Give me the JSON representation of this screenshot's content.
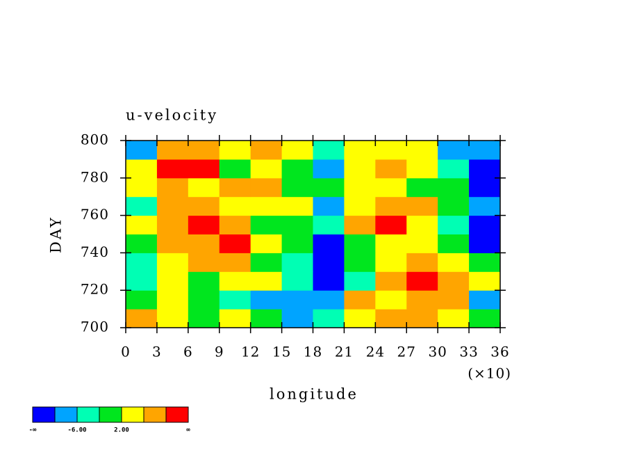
{
  "chart_data": {
    "type": "heatmap",
    "title": "u-velocity",
    "x_label": "longitude",
    "y_label": "DAY",
    "x_multiplier_label": "(×10)",
    "xlim": [
      0,
      36
    ],
    "xticks": [
      0,
      3,
      6,
      9,
      12,
      15,
      18,
      21,
      24,
      27,
      30,
      33,
      36
    ],
    "ylim": [
      700,
      800
    ],
    "yticks": [
      700,
      720,
      740,
      760,
      780,
      800
    ],
    "x": [
      1.5,
      4.5,
      7.5,
      10.5,
      13.5,
      16.5,
      19.5,
      22.5,
      25.5,
      28.5,
      31.5,
      34.5
    ],
    "y": [
      705,
      715,
      725,
      735,
      745,
      755,
      765,
      775,
      785,
      795
    ],
    "z": [
      [
        6,
        2,
        0,
        4,
        0,
        -8,
        -6,
        4,
        6,
        8,
        4,
        0
      ],
      [
        0,
        4,
        0,
        -3,
        -8,
        -10,
        -8,
        8,
        4,
        8,
        6,
        -8
      ],
      [
        -3,
        4,
        0,
        4,
        2,
        -4,
        -12,
        -6,
        6,
        12,
        8,
        2
      ],
      [
        -6,
        4,
        8,
        6,
        0,
        -6,
        -12,
        -2,
        4,
        6,
        4,
        0
      ],
      [
        0,
        6,
        8,
        12,
        4,
        0,
        -12,
        0,
        2,
        4,
        0,
        -12
      ],
      [
        4,
        6,
        10,
        8,
        0,
        -2,
        -6,
        8,
        12,
        4,
        -4,
        -12
      ],
      [
        -6,
        8,
        6,
        4,
        2,
        4,
        -10,
        2,
        6,
        8,
        0,
        -8
      ],
      [
        2,
        8,
        4,
        6,
        8,
        0,
        -2,
        4,
        2,
        0,
        -2,
        -12
      ],
      [
        4,
        10,
        12,
        0,
        4,
        0,
        -8,
        4,
        8,
        4,
        -4,
        -12
      ],
      [
        -8,
        6,
        8,
        4,
        8,
        4,
        -6,
        2,
        4,
        4,
        -10,
        -8
      ]
    ],
    "levels": [
      -10,
      -6,
      -2,
      2,
      6,
      10
    ],
    "level_labels": [
      null,
      "-6.00",
      null,
      "2.00",
      null,
      null
    ],
    "lower_label": "-∞",
    "upper_label": "∞",
    "colors": [
      "#0000ff",
      "#00a4ff",
      "#00ffb4",
      "#00e61e",
      "#ffff00",
      "#ffa500",
      "#ff0000"
    ]
  }
}
